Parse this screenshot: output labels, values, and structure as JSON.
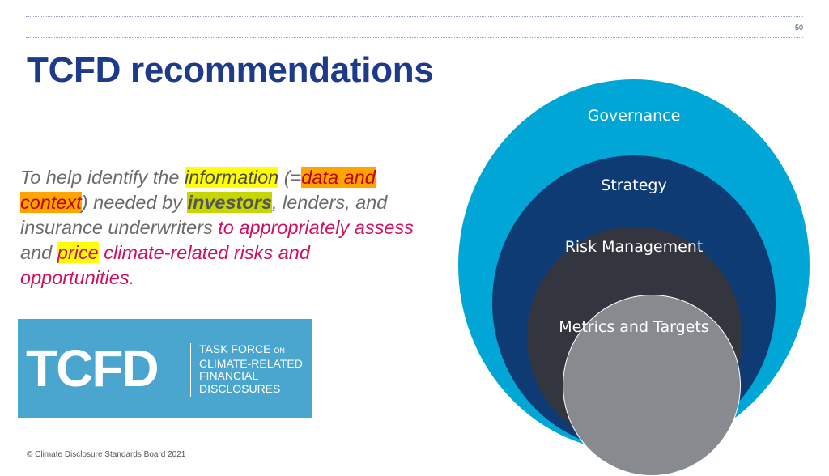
{
  "page": {
    "number": "50"
  },
  "title": "TCFD recommendations",
  "body": {
    "t1": "To help identify the ",
    "information": "information",
    "t2": " (=",
    "data_and": "data and ",
    "context": "context",
    "t3": ") needed by ",
    "investors": "investors",
    "t4": ", lenders, and insurance underwriters ",
    "to_appropriately_assess": "to appropriately assess",
    "t5": " and ",
    "price": "price",
    "t6": " climate-related risks and opportunities",
    "t7": "."
  },
  "logo": {
    "mark": "TCFD",
    "line1_main": "TASK FORCE ",
    "line1_small": "ON",
    "line2": "CLIMATE-RELATED",
    "line3": "FINANCIAL",
    "line4": "DISCLOSURES"
  },
  "diagram": {
    "governance": "Governance",
    "strategy": "Strategy",
    "risk_management": "Risk Management",
    "metrics_and_targets": "Metrics and Targets"
  },
  "footer": "© Climate Disclosure Standards Board 2021",
  "colors": {
    "title": "#1e3a8a",
    "governance": "#00a6d6",
    "strategy": "#0e3b73",
    "risk_management": "#33363e",
    "metrics": "#878a8f",
    "logo_bg": "#4aa6ce",
    "emphasis": "#d1105f"
  }
}
